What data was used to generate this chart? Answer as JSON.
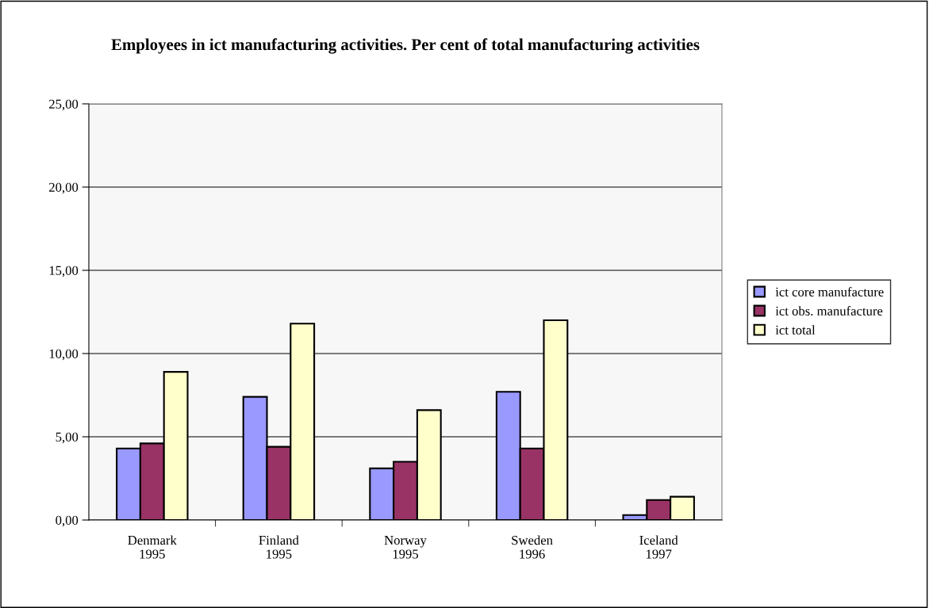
{
  "chart_data": {
    "type": "bar",
    "title": "Employees in ict manufacturing activities. Per cent of total manufacturing activities",
    "categories": [
      "Denmark\n1995",
      "Finland\n1995",
      "Norway\n1995",
      "Sweden\n1996",
      "Iceland\n1997"
    ],
    "series": [
      {
        "name": "ict core manufacture",
        "color": "#9999ff",
        "values": [
          4.3,
          7.4,
          3.1,
          7.7,
          0.3
        ]
      },
      {
        "name": "ict obs. manufacture",
        "color": "#993366",
        "values": [
          4.6,
          4.4,
          3.5,
          4.3,
          1.2
        ]
      },
      {
        "name": "ict total",
        "color": "#ffffcc",
        "values": [
          8.9,
          11.8,
          6.6,
          12.0,
          1.4
        ]
      }
    ],
    "ylim": [
      0,
      25
    ],
    "yticks": [
      {
        "value": 0,
        "label": "0,00"
      },
      {
        "value": 5,
        "label": "5,00"
      },
      {
        "value": 10,
        "label": "10,00"
      },
      {
        "value": 15,
        "label": "15,00"
      },
      {
        "value": 20,
        "label": "20,00"
      },
      {
        "value": 25,
        "label": "25,00"
      }
    ],
    "grid": "y",
    "legend": "right"
  }
}
